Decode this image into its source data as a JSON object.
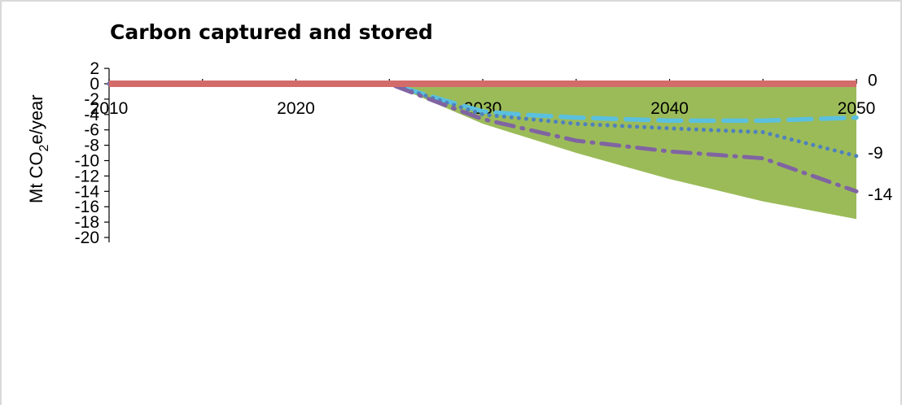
{
  "chart_data": {
    "type": "area",
    "title": "Carbon captured and stored",
    "ylabel_main": "Mt CO",
    "ylabel_sub": "2",
    "ylabel_tail": "e/year",
    "xlabel": "",
    "xlim": [
      2010,
      2050
    ],
    "ylim": [
      -20,
      2
    ],
    "x_ticks": [
      2010,
      2020,
      2030,
      2040,
      2050
    ],
    "y_ticks": [
      2,
      0,
      -2,
      -4,
      -6,
      -8,
      -10,
      -12,
      -14,
      -16,
      -18,
      -20
    ],
    "grid": false,
    "legend": "none",
    "range_area": {
      "color": "#9bbb59",
      "x": [
        2010,
        2025,
        2030,
        2035,
        2040,
        2045,
        2050
      ],
      "upper": [
        0,
        0,
        0,
        0,
        0,
        0,
        0
      ],
      "lower": [
        0,
        0,
        -5.2,
        -9.0,
        -12.4,
        -15.3,
        -17.6
      ]
    },
    "series": [
      {
        "style": "solid",
        "color": "#d46b6b",
        "x": [
          2010,
          2015,
          2020,
          2025,
          2030,
          2035,
          2040,
          2045,
          2050
        ],
        "values": [
          0,
          0,
          0,
          0,
          0,
          0,
          0,
          0,
          0
        ]
      },
      {
        "style": "dashed",
        "color": "#5bc0de",
        "x": [
          2010,
          2015,
          2020,
          2025,
          2028,
          2030,
          2032,
          2035,
          2040,
          2045,
          2050
        ],
        "values": [
          0,
          0,
          0,
          0,
          -2.2,
          -3.6,
          -4.0,
          -4.4,
          -4.8,
          -4.8,
          -4.4
        ]
      },
      {
        "style": "dotted",
        "color": "#4f81bd",
        "x": [
          2010,
          2015,
          2020,
          2025,
          2028,
          2030,
          2035,
          2040,
          2045,
          2050
        ],
        "values": [
          0,
          0,
          0,
          0,
          -2.4,
          -4.0,
          -5.2,
          -5.8,
          -6.3,
          -9.4
        ]
      },
      {
        "style": "dashdot",
        "color": "#8064a2",
        "x": [
          2010,
          2015,
          2020,
          2025,
          2028,
          2030,
          2035,
          2040,
          2045,
          2050
        ],
        "values": [
          0,
          0,
          0,
          0,
          -2.8,
          -4.6,
          -7.4,
          -8.8,
          -9.7,
          -14.0
        ]
      }
    ],
    "end_labels": [
      {
        "text": "0",
        "value": 0.5
      },
      {
        "text": "-9",
        "value": -9.0
      },
      {
        "text": "-14",
        "value": -14.4
      }
    ]
  }
}
